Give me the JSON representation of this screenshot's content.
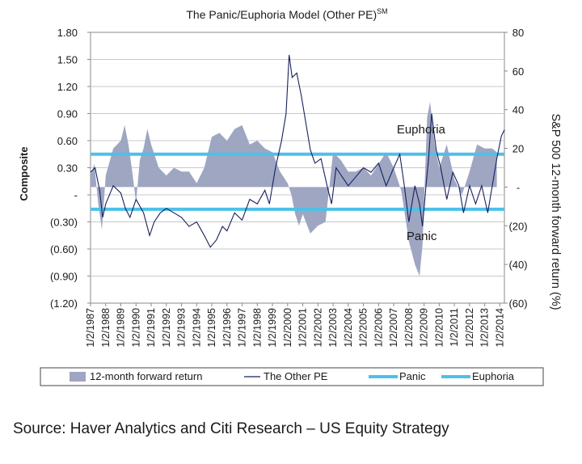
{
  "chart_data": {
    "type": "area+line",
    "title": "The Panic/Euphoria Model (Other PE)",
    "title_superscript": "SM",
    "ylabel_left": "Composite",
    "ylabel_right": "S&P 500 12-month forward return (%)",
    "left_axis": {
      "range": [
        -1.2,
        1.8
      ],
      "ticks": [
        1.8,
        1.5,
        1.2,
        0.9,
        0.6,
        0.3,
        0,
        -0.3,
        -0.6,
        -0.9,
        -1.2
      ],
      "tick_labels": [
        "1.80",
        "1.50",
        "1.20",
        "0.90",
        "0.60",
        "0.30",
        "-",
        "(0.30)",
        "(0.60)",
        "(0.90)",
        "(1.20)"
      ]
    },
    "right_axis": {
      "range": [
        -60,
        80
      ],
      "ticks": [
        80,
        60,
        40,
        20,
        0,
        -20,
        -40,
        -60
      ],
      "tick_labels": [
        "80",
        "60",
        "40",
        "20",
        "-",
        "(20)",
        "(40)",
        "(60)"
      ]
    },
    "x_categories": [
      "1/2/1987",
      "1/2/1988",
      "1/2/1989",
      "1/2/1990",
      "1/2/1991",
      "1/2/1992",
      "1/2/1993",
      "1/2/1994",
      "1/2/1995",
      "1/2/1996",
      "1/2/1997",
      "1/2/1998",
      "1/2/1999",
      "1/2/2000",
      "1/2/2001",
      "1/2/2002",
      "1/2/2003",
      "1/2/2004",
      "1/2/2005",
      "1/2/2006",
      "1/2/2007",
      "1/2/2008",
      "1/2/2009",
      "1/2/2010",
      "1/2/2011",
      "1/2/2012",
      "1/2/2013",
      "1/2/2014"
    ],
    "x_range": [
      1987.0,
      2014.3
    ],
    "thresholds": {
      "euphoria": 0.45,
      "panic": -0.16
    },
    "series": [
      {
        "name": "12-month forward return",
        "axis": "right",
        "color": "#9ea6c2",
        "points": [
          [
            1987.0,
            6
          ],
          [
            1987.25,
            12
          ],
          [
            1987.5,
            -8
          ],
          [
            1987.75,
            -22
          ],
          [
            1988.0,
            6
          ],
          [
            1988.5,
            20
          ],
          [
            1989.0,
            24
          ],
          [
            1989.25,
            32
          ],
          [
            1989.5,
            22
          ],
          [
            1989.75,
            8
          ],
          [
            1990.0,
            -8
          ],
          [
            1990.25,
            14
          ],
          [
            1990.5,
            20
          ],
          [
            1990.75,
            30
          ],
          [
            1991.0,
            22
          ],
          [
            1991.5,
            10
          ],
          [
            1992.0,
            6
          ],
          [
            1992.5,
            10
          ],
          [
            1993.0,
            8
          ],
          [
            1993.5,
            8
          ],
          [
            1994.0,
            2
          ],
          [
            1994.5,
            10
          ],
          [
            1995.0,
            26
          ],
          [
            1995.5,
            28
          ],
          [
            1996.0,
            24
          ],
          [
            1996.5,
            30
          ],
          [
            1997.0,
            32
          ],
          [
            1997.5,
            22
          ],
          [
            1998.0,
            24
          ],
          [
            1998.5,
            20
          ],
          [
            1999.0,
            18
          ],
          [
            1999.5,
            8
          ],
          [
            2000.0,
            2
          ],
          [
            2000.25,
            -4
          ],
          [
            2000.5,
            -14
          ],
          [
            2000.75,
            -20
          ],
          [
            2001.0,
            -14
          ],
          [
            2001.5,
            -24
          ],
          [
            2002.0,
            -20
          ],
          [
            2002.5,
            -18
          ],
          [
            2003.0,
            18
          ],
          [
            2003.5,
            14
          ],
          [
            2004.0,
            8
          ],
          [
            2004.5,
            8
          ],
          [
            2005.0,
            10
          ],
          [
            2005.5,
            6
          ],
          [
            2006.0,
            12
          ],
          [
            2006.5,
            18
          ],
          [
            2007.0,
            10
          ],
          [
            2007.5,
            -2
          ],
          [
            2008.0,
            -28
          ],
          [
            2008.4,
            -40
          ],
          [
            2008.7,
            -46
          ],
          [
            2008.9,
            -30
          ],
          [
            2009.2,
            36
          ],
          [
            2009.4,
            44
          ],
          [
            2009.7,
            22
          ],
          [
            2010.0,
            10
          ],
          [
            2010.5,
            22
          ],
          [
            2011.0,
            4
          ],
          [
            2011.5,
            -4
          ],
          [
            2012.0,
            8
          ],
          [
            2012.5,
            22
          ],
          [
            2013.0,
            20
          ],
          [
            2013.5,
            20
          ],
          [
            2013.8,
            18
          ]
        ]
      },
      {
        "name": "The Other PE",
        "axis": "left",
        "color": "#17215c",
        "points": [
          [
            1987.0,
            0.25
          ],
          [
            1987.3,
            0.3
          ],
          [
            1987.6,
            0.05
          ],
          [
            1987.8,
            -0.25
          ],
          [
            1988.0,
            -0.1
          ],
          [
            1988.5,
            0.1
          ],
          [
            1989.0,
            0.02
          ],
          [
            1989.3,
            -0.15
          ],
          [
            1989.6,
            -0.25
          ],
          [
            1990.0,
            -0.05
          ],
          [
            1990.5,
            -0.2
          ],
          [
            1990.9,
            -0.45
          ],
          [
            1991.2,
            -0.3
          ],
          [
            1991.6,
            -0.2
          ],
          [
            1992.0,
            -0.15
          ],
          [
            1992.5,
            -0.2
          ],
          [
            1993.0,
            -0.25
          ],
          [
            1993.5,
            -0.35
          ],
          [
            1994.0,
            -0.3
          ],
          [
            1994.5,
            -0.45
          ],
          [
            1994.9,
            -0.58
          ],
          [
            1995.3,
            -0.5
          ],
          [
            1995.7,
            -0.35
          ],
          [
            1996.0,
            -0.4
          ],
          [
            1996.5,
            -0.2
          ],
          [
            1997.0,
            -0.28
          ],
          [
            1997.5,
            -0.05
          ],
          [
            1998.0,
            -0.1
          ],
          [
            1998.5,
            0.05
          ],
          [
            1998.8,
            -0.1
          ],
          [
            1999.2,
            0.3
          ],
          [
            1999.6,
            0.6
          ],
          [
            1999.9,
            0.9
          ],
          [
            2000.1,
            1.55
          ],
          [
            2000.3,
            1.3
          ],
          [
            2000.6,
            1.35
          ],
          [
            2000.9,
            1.1
          ],
          [
            2001.2,
            0.8
          ],
          [
            2001.5,
            0.5
          ],
          [
            2001.8,
            0.35
          ],
          [
            2002.2,
            0.4
          ],
          [
            2002.6,
            0.1
          ],
          [
            2002.9,
            -0.1
          ],
          [
            2003.2,
            0.3
          ],
          [
            2003.6,
            0.2
          ],
          [
            2004.0,
            0.1
          ],
          [
            2004.5,
            0.2
          ],
          [
            2005.0,
            0.3
          ],
          [
            2005.5,
            0.25
          ],
          [
            2006.0,
            0.35
          ],
          [
            2006.5,
            0.1
          ],
          [
            2007.0,
            0.3
          ],
          [
            2007.4,
            0.45
          ],
          [
            2007.7,
            0.1
          ],
          [
            2008.0,
            -0.3
          ],
          [
            2008.4,
            0.1
          ],
          [
            2008.7,
            -0.1
          ],
          [
            2008.9,
            -0.35
          ],
          [
            2009.1,
            0.05
          ],
          [
            2009.3,
            0.4
          ],
          [
            2009.5,
            0.9
          ],
          [
            2009.8,
            0.5
          ],
          [
            2010.1,
            0.3
          ],
          [
            2010.5,
            -0.05
          ],
          [
            2010.9,
            0.25
          ],
          [
            2011.3,
            0.1
          ],
          [
            2011.6,
            -0.2
          ],
          [
            2012.0,
            0.1
          ],
          [
            2012.4,
            -0.1
          ],
          [
            2012.8,
            0.1
          ],
          [
            2013.2,
            -0.2
          ],
          [
            2013.5,
            0.1
          ],
          [
            2013.8,
            0.4
          ],
          [
            2014.1,
            0.65
          ],
          [
            2014.3,
            0.72
          ]
        ]
      },
      {
        "name": "Panic",
        "color": "#4ec0e8"
      },
      {
        "name": "Euphoria",
        "color": "#4ec0e8"
      }
    ],
    "annotations": [
      {
        "text": "Euphoria",
        "x": 2007.2,
        "y": 0.68
      },
      {
        "text": "Panic",
        "x": 2007.2,
        "y": -0.5
      }
    ],
    "legend": {
      "position": "bottom",
      "entries": [
        "12-month forward return",
        "The Other PE",
        "Panic",
        "Euphoria"
      ]
    }
  },
  "source_text": "Source: Haver Analytics and Citi Research – US Equity Strategy"
}
